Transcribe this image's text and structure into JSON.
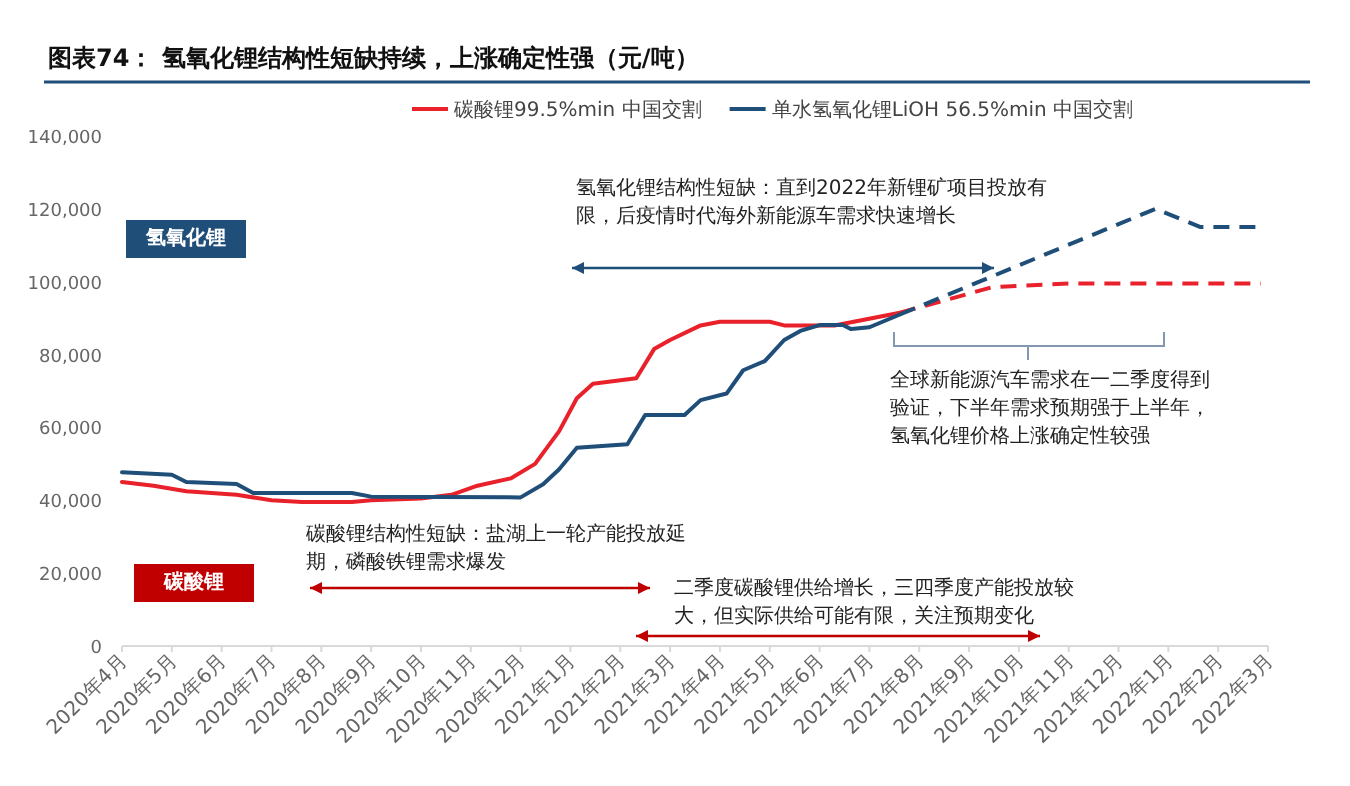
{
  "chart_data": {
    "type": "line",
    "title": "图表74：  氢氧化锂结构性短缺持续，上涨确定性强（元/吨）",
    "legend": "top",
    "grid": false,
    "marker": "none",
    "xlim": [
      "2020-04",
      "2022-03"
    ],
    "xticks": [
      {
        "value": "2020-04",
        "label": "2020年4月"
      },
      {
        "value": "2020-05",
        "label": "2020年5月"
      },
      {
        "value": "2020-06",
        "label": "2020年6月"
      },
      {
        "value": "2020-07",
        "label": "2020年7月"
      },
      {
        "value": "2020-08",
        "label": "2020年8月"
      },
      {
        "value": "2020-09",
        "label": "2020年9月"
      },
      {
        "value": "2020-10",
        "label": "2020年10月"
      },
      {
        "value": "2020-11",
        "label": "2020年11月"
      },
      {
        "value": "2020-12",
        "label": "2020年12月"
      },
      {
        "value": "2021-01",
        "label": "2021年1月"
      },
      {
        "value": "2021-02",
        "label": "2021年2月"
      },
      {
        "value": "2021-03",
        "label": "2021年3月"
      },
      {
        "value": "2021-04",
        "label": "2021年4月"
      },
      {
        "value": "2021-05",
        "label": "2021年5月"
      },
      {
        "value": "2021-06",
        "label": "2021年6月"
      },
      {
        "value": "2021-07",
        "label": "2021年7月"
      },
      {
        "value": "2021-08",
        "label": "2021年8月"
      },
      {
        "value": "2021-09",
        "label": "2021年9月"
      },
      {
        "value": "2021-10",
        "label": "2021年10月"
      },
      {
        "value": "2021-11",
        "label": "2021年11月"
      },
      {
        "value": "2021-12",
        "label": "2021年12月"
      },
      {
        "value": "2022-01",
        "label": "2022年1月"
      },
      {
        "value": "2022-02",
        "label": "2022年2月"
      },
      {
        "value": "2022-03",
        "label": "2022年3月"
      }
    ],
    "ylim": [
      0,
      140000
    ],
    "yticks": [
      {
        "value": 0,
        "label": "0"
      },
      {
        "value": 20000,
        "label": "20,000"
      },
      {
        "value": 40000,
        "label": "40,000"
      },
      {
        "value": 60000,
        "label": "60,000"
      },
      {
        "value": 80000,
        "label": "80,000"
      },
      {
        "value": 100000,
        "label": "100,000"
      },
      {
        "value": 120000,
        "label": "120,000"
      },
      {
        "value": 140000,
        "label": "140,000"
      }
    ],
    "series": [
      {
        "name": "碳酸锂99.5%min 中国交割",
        "color": "#e8212a",
        "line_style": "solid",
        "x": [
          "2020-04-01",
          "2020-04-20",
          "2020-05-10",
          "2020-06-10",
          "2020-07-01",
          "2020-07-20",
          "2020-08-20",
          "2020-09-01",
          "2020-10-01",
          "2020-10-20",
          "2020-11-05",
          "2020-11-25",
          "2020-12-10",
          "2020-12-25",
          "2021-01-05",
          "2021-01-15",
          "2021-02-10",
          "2021-02-20",
          "2021-03-01",
          "2021-03-20",
          "2021-04-01",
          "2021-05-01",
          "2021-05-10",
          "2021-06-10",
          "2021-07-20"
        ],
        "values": [
          45000,
          44000,
          42500,
          41500,
          40000,
          39500,
          39500,
          40000,
          40500,
          41500,
          44000,
          46000,
          50000,
          59000,
          68000,
          72000,
          73500,
          81500,
          84000,
          88000,
          89000,
          89000,
          88000,
          88000,
          91500
        ]
      },
      {
        "name": "单水氢氧化锂LiOH 56.5%min 中国交割",
        "color": "#1f4e79",
        "line_style": "solid",
        "x": [
          "2020-04-01",
          "2020-05-01",
          "2020-05-10",
          "2020-06-10",
          "2020-06-20",
          "2020-08-20",
          "2020-09-01",
          "2020-12-01",
          "2020-12-15",
          "2020-12-25",
          "2021-01-05",
          "2021-02-05",
          "2021-02-15",
          "2021-03-10",
          "2021-03-20",
          "2021-04-05",
          "2021-04-15",
          "2021-04-28",
          "2021-05-10",
          "2021-05-20",
          "2021-06-01",
          "2021-06-15",
          "2021-06-20",
          "2021-07-01",
          "2021-07-20"
        ],
        "values": [
          47700,
          47000,
          45000,
          44500,
          42000,
          42000,
          41000,
          40800,
          44400,
          48500,
          54400,
          55400,
          63400,
          63400,
          67500,
          69300,
          75700,
          78200,
          84000,
          86500,
          88100,
          88100,
          87000,
          87500,
          91000
        ]
      },
      {
        "color": "#e8212a",
        "line_style": "dashed",
        "x": [
          "2021-07-20",
          "2021-09-15",
          "2021-11-01",
          "2022-02-25"
        ],
        "values": [
          91500,
          98500,
          99500,
          99500
        ]
      },
      {
        "color": "#1f4e79",
        "line_style": "dashed",
        "x": [
          "2021-07-20",
          "2021-12-24",
          "2022-01-21",
          "2022-02-25"
        ],
        "values": [
          91000,
          120000,
          115000,
          115000
        ]
      }
    ],
    "annotations": [
      "氢氧化锂",
      "碳酸锂",
      "氢氧化锂结构性短缺：直到2022年新锂矿项目投放有限，后疫情时代海外新能源车需求快速增长",
      "碳酸锂结构性短缺：盐湖上一轮产能投放延期，磷酸铁锂需求爆发",
      "全球新能源汽车需求在一二季度得到验证，下半年需求预期强于上半年，氢氧化锂价格上涨确定性较强",
      "二季度碳酸锂供给增长，三四季度产能投放较大，但实际供给可能有限，关注预期变化"
    ]
  }
}
